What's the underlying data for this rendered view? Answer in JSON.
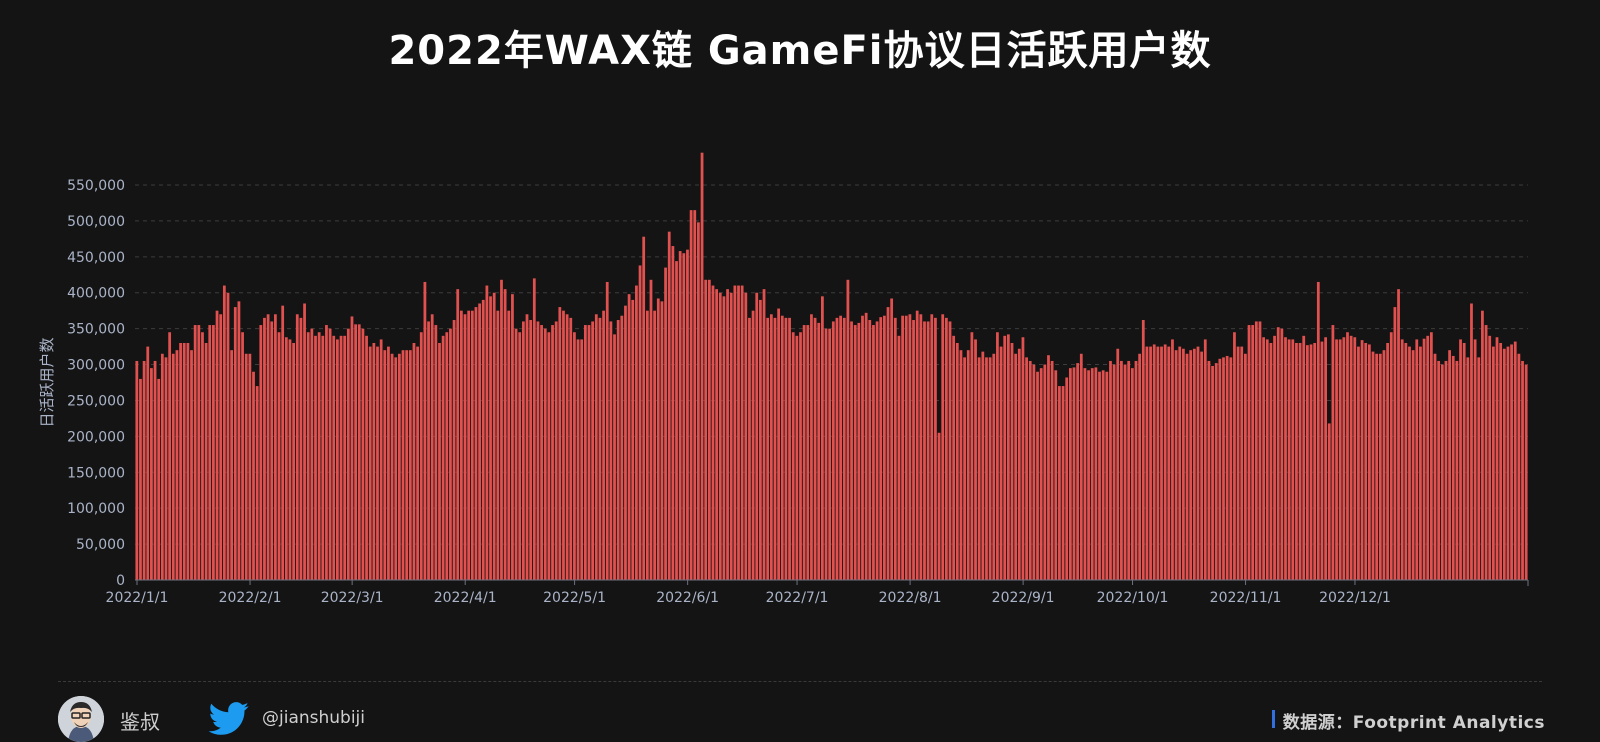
{
  "colors": {
    "background": "#141414",
    "bar": "#e0514f",
    "bar_stroke": "#c43d3b",
    "grid": "#3c3c3c",
    "axis_text": "#aab4c8",
    "accent_blue": "#2f6fe0"
  },
  "footer": {
    "author": "鉴叔",
    "handle": "@jianshubiji",
    "source": "数据源：Footprint Analytics",
    "avatar_icon": "avatar-icon",
    "twitter_icon": "twitter-bird-icon"
  },
  "chart_data": {
    "type": "bar",
    "title": "2022年WAX链 GameFi协议日活跃用户数",
    "xlabel": "",
    "ylabel": "日活跃用户数",
    "ylim": [
      0,
      600000
    ],
    "yticks": [
      0,
      50000,
      100000,
      150000,
      200000,
      250000,
      300000,
      350000,
      400000,
      450000,
      500000,
      550000
    ],
    "ytick_labels": [
      "0",
      "50,000",
      "100,000",
      "150,000",
      "200,000",
      "250,000",
      "300,000",
      "350,000",
      "400,000",
      "450,000",
      "500,000",
      "550,000"
    ],
    "xtick_labels": [
      "2022/1/1",
      "2022/2/1",
      "2022/3/1",
      "2022/4/1",
      "2022/5/1",
      "2022/6/1",
      "2022/7/1",
      "2022/8/1",
      "2022/9/1",
      "2022/10/1",
      "2022/11/1",
      "2022/12/1"
    ],
    "xtick_days": [
      0,
      31,
      59,
      90,
      120,
      151,
      181,
      212,
      243,
      273,
      304,
      334
    ],
    "grid": true,
    "legend": "none",
    "values": [
      305000,
      280000,
      305000,
      325000,
      295000,
      305000,
      280000,
      315000,
      310000,
      345000,
      315000,
      320000,
      330000,
      330000,
      330000,
      320000,
      355000,
      355000,
      345000,
      330000,
      355000,
      355000,
      375000,
      370000,
      410000,
      400000,
      320000,
      380000,
      388000,
      345000,
      315000,
      315000,
      290000,
      270000,
      355000,
      365000,
      370000,
      360000,
      370000,
      345000,
      382000,
      338000,
      335000,
      330000,
      370000,
      365000,
      385000,
      345000,
      350000,
      340000,
      345000,
      340000,
      355000,
      350000,
      340000,
      335000,
      340000,
      340000,
      350000,
      367000,
      356000,
      356000,
      350000,
      340000,
      325000,
      330000,
      325000,
      335000,
      320000,
      325000,
      315000,
      310000,
      315000,
      320000,
      320000,
      320000,
      330000,
      325000,
      345000,
      415000,
      360000,
      370000,
      355000,
      330000,
      340000,
      345000,
      350000,
      362000,
      405000,
      375000,
      370000,
      375000,
      375000,
      380000,
      385000,
      390000,
      410000,
      395000,
      400000,
      375000,
      418000,
      405000,
      375000,
      398000,
      350000,
      345000,
      360000,
      370000,
      362000,
      420000,
      360000,
      355000,
      350000,
      345000,
      355000,
      360000,
      380000,
      375000,
      370000,
      365000,
      345000,
      335000,
      335000,
      355000,
      355000,
      360000,
      370000,
      365000,
      375000,
      415000,
      360000,
      342000,
      362000,
      368000,
      382000,
      398000,
      390000,
      410000,
      438000,
      478000,
      375000,
      418000,
      375000,
      392000,
      388000,
      435000,
      485000,
      465000,
      444000,
      458000,
      455000,
      460000,
      515000,
      515000,
      498000,
      595000,
      418000,
      418000,
      410000,
      405000,
      400000,
      395000,
      405000,
      400000,
      410000,
      410000,
      410000,
      400000,
      365000,
      375000,
      400000,
      390000,
      405000,
      365000,
      370000,
      365000,
      378000,
      368000,
      365000,
      365000,
      345000,
      340000,
      345000,
      355000,
      355000,
      370000,
      365000,
      358000,
      395000,
      350000,
      350000,
      360000,
      365000,
      368000,
      365000,
      418000,
      360000,
      355000,
      358000,
      368000,
      372000,
      362000,
      355000,
      360000,
      366000,
      368000,
      380000,
      392000,
      365000,
      340000,
      368000,
      368000,
      370000,
      362000,
      375000,
      370000,
      360000,
      360000,
      370000,
      365000,
      205000,
      370000,
      365000,
      360000,
      340000,
      330000,
      320000,
      310000,
      320000,
      345000,
      335000,
      310000,
      318000,
      310000,
      310000,
      315000,
      345000,
      325000,
      340000,
      342000,
      330000,
      315000,
      322000,
      338000,
      310000,
      305000,
      300000,
      290000,
      295000,
      300000,
      313000,
      305000,
      292000,
      270000,
      270000,
      282000,
      295000,
      296000,
      302000,
      315000,
      295000,
      292000,
      295000,
      296000,
      290000,
      292000,
      290000,
      305000,
      300000,
      322000,
      305000,
      300000,
      305000,
      295000,
      305000,
      315000,
      362000,
      325000,
      325000,
      328000,
      325000,
      325000,
      328000,
      325000,
      335000,
      320000,
      325000,
      322000,
      315000,
      320000,
      322000,
      325000,
      318000,
      335000,
      305000,
      298000,
      302000,
      308000,
      310000,
      312000,
      310000,
      345000,
      325000,
      325000,
      315000,
      355000,
      355000,
      360000,
      360000,
      338000,
      335000,
      330000,
      340000,
      352000,
      350000,
      338000,
      335000,
      335000,
      330000,
      330000,
      340000,
      327000,
      328000,
      330000,
      415000,
      332000,
      338000,
      218000,
      355000,
      335000,
      335000,
      338000,
      345000,
      340000,
      338000,
      325000,
      334000,
      330000,
      328000,
      318000,
      315000,
      315000,
      320000,
      330000,
      345000,
      380000,
      405000,
      335000,
      330000,
      325000,
      320000,
      335000,
      325000,
      336000,
      340000,
      345000,
      315000,
      305000,
      300000,
      305000,
      320000,
      312000,
      305000,
      335000,
      330000,
      310000,
      385000,
      335000,
      310000,
      375000,
      355000,
      340000,
      325000,
      338000,
      330000,
      322000,
      325000,
      328000,
      332000,
      315000,
      305000,
      300000
    ]
  }
}
